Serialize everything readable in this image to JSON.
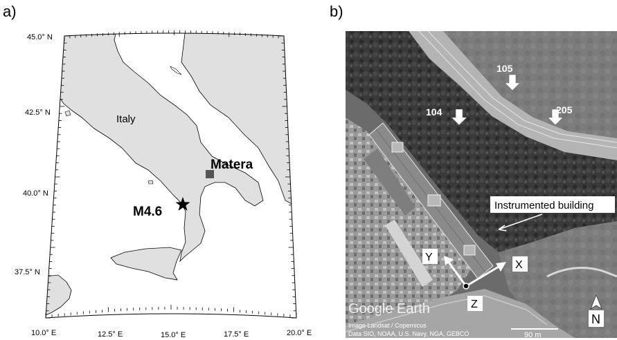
{
  "panel_a": {
    "label": "a)",
    "lat_ticks": [
      "45.0° N",
      "42.5° N",
      "40.0° N",
      "37.5° N"
    ],
    "lon_ticks": [
      "10.0° E",
      "12.5° E",
      "15.0° E",
      "17.5° E",
      "20.0° E"
    ],
    "country_label": "Italy",
    "city": {
      "name": "Matera",
      "marker": "square",
      "color": "#555555"
    },
    "epicenter": {
      "name": "M4.6",
      "marker": "star",
      "color": "#000000"
    },
    "land_color": "#e0e0e0",
    "sea_color": "#ffffff"
  },
  "panel_b": {
    "label": "b)",
    "station_labels": [
      "105",
      "104",
      "205"
    ],
    "building_label": "Instrumented building",
    "axes": {
      "y": "Y",
      "x": "X",
      "z": "Z"
    },
    "brand": "Google Earth",
    "credit_line1": "Image Landsat / Copernicus",
    "credit_line2": "Data SIO, NOAA, U.S. Navy, NGA, GEBCO",
    "scale": "90 m",
    "north": "N"
  }
}
